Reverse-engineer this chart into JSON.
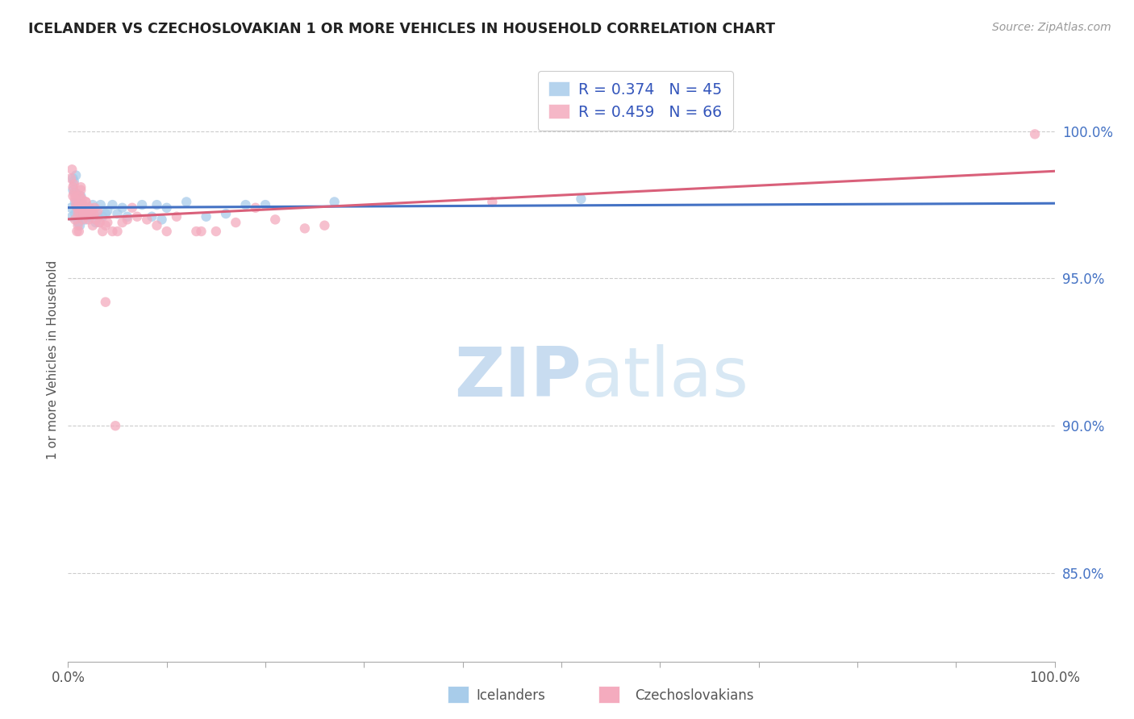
{
  "title": "ICELANDER VS CZECHOSLOVAKIAN 1 OR MORE VEHICLES IN HOUSEHOLD CORRELATION CHART",
  "source": "Source: ZipAtlas.com",
  "ylabel": "1 or more Vehicles in Household",
  "ytick_labels": [
    "85.0%",
    "90.0%",
    "95.0%",
    "100.0%"
  ],
  "ytick_values": [
    0.85,
    0.9,
    0.95,
    1.0
  ],
  "xlim": [
    0.0,
    1.0
  ],
  "ylim": [
    0.82,
    1.025
  ],
  "legend_r1": "R = 0.374",
  "legend_n1": "N = 45",
  "legend_r2": "R = 0.459",
  "legend_n2": "N = 66",
  "color_icelander": "#A8CCEA",
  "color_czechoslovakian": "#F4ABBE",
  "color_line_icelander": "#4472C4",
  "color_line_czechoslovakian": "#D9607A",
  "watermark_zip": "ZIP",
  "watermark_atlas": "atlas",
  "icelander_x": [
    0.003,
    0.004,
    0.005,
    0.005,
    0.006,
    0.007,
    0.007,
    0.008,
    0.008,
    0.009,
    0.01,
    0.01,
    0.011,
    0.012,
    0.012,
    0.013,
    0.014,
    0.015,
    0.016,
    0.018,
    0.02,
    0.022,
    0.025,
    0.028,
    0.03,
    0.033,
    0.035,
    0.038,
    0.04,
    0.045,
    0.05,
    0.055,
    0.06,
    0.075,
    0.085,
    0.09,
    0.1,
    0.12,
    0.14,
    0.16,
    0.18,
    0.2,
    0.27,
    0.095,
    0.52
  ],
  "icelander_y": [
    0.974,
    0.971,
    0.984,
    0.98,
    0.983,
    0.976,
    0.972,
    0.985,
    0.979,
    0.976,
    0.975,
    0.969,
    0.972,
    0.973,
    0.968,
    0.978,
    0.974,
    0.975,
    0.972,
    0.97,
    0.973,
    0.971,
    0.975,
    0.969,
    0.972,
    0.975,
    0.971,
    0.972,
    0.973,
    0.975,
    0.972,
    0.974,
    0.971,
    0.975,
    0.971,
    0.975,
    0.974,
    0.976,
    0.971,
    0.972,
    0.975,
    0.975,
    0.976,
    0.97,
    0.977
  ],
  "czechoslovakian_x": [
    0.003,
    0.004,
    0.005,
    0.006,
    0.006,
    0.007,
    0.008,
    0.008,
    0.009,
    0.01,
    0.01,
    0.011,
    0.012,
    0.012,
    0.013,
    0.014,
    0.015,
    0.015,
    0.016,
    0.017,
    0.018,
    0.019,
    0.02,
    0.021,
    0.022,
    0.023,
    0.025,
    0.026,
    0.028,
    0.03,
    0.032,
    0.035,
    0.038,
    0.04,
    0.045,
    0.05,
    0.055,
    0.06,
    0.065,
    0.07,
    0.08,
    0.09,
    0.1,
    0.11,
    0.13,
    0.15,
    0.17,
    0.19,
    0.21,
    0.24,
    0.005,
    0.007,
    0.009,
    0.011,
    0.013,
    0.016,
    0.018,
    0.022,
    0.027,
    0.032,
    0.038,
    0.048,
    0.135,
    0.26,
    0.43,
    0.98
  ],
  "czechoslovakian_y": [
    0.984,
    0.987,
    0.981,
    0.982,
    0.979,
    0.977,
    0.978,
    0.975,
    0.974,
    0.972,
    0.968,
    0.975,
    0.978,
    0.972,
    0.981,
    0.977,
    0.975,
    0.97,
    0.973,
    0.974,
    0.976,
    0.972,
    0.973,
    0.97,
    0.974,
    0.972,
    0.968,
    0.972,
    0.97,
    0.973,
    0.969,
    0.966,
    0.968,
    0.969,
    0.966,
    0.966,
    0.969,
    0.97,
    0.974,
    0.971,
    0.97,
    0.968,
    0.966,
    0.971,
    0.966,
    0.966,
    0.969,
    0.974,
    0.97,
    0.967,
    0.978,
    0.97,
    0.966,
    0.966,
    0.98,
    0.972,
    0.976,
    0.972,
    0.974,
    0.969,
    0.942,
    0.9,
    0.966,
    0.968,
    0.976,
    0.999
  ],
  "marker_size": 80
}
